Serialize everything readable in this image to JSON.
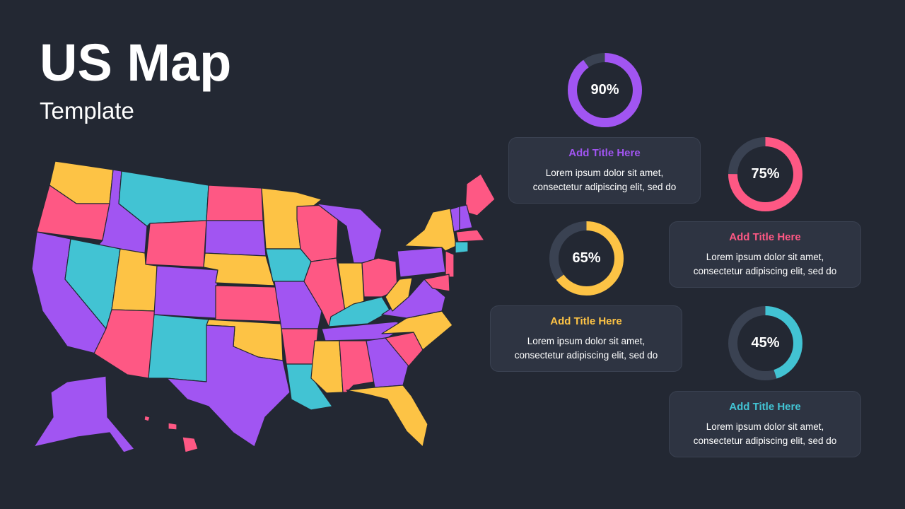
{
  "title": "US Map",
  "subtitle": "Template",
  "colors": {
    "background": "#232833",
    "card": "#2e3442",
    "track": "#3a4252",
    "purple": "#a155f2",
    "pink": "#fe5884",
    "yellow": "#fdc345",
    "teal": "#42c3d3"
  },
  "stats": [
    {
      "value": "90%",
      "fraction": 0.9,
      "color": "#a155f2"
    },
    {
      "value": "75%",
      "fraction": 0.75,
      "color": "#fe5884"
    },
    {
      "value": "65%",
      "fraction": 0.65,
      "color": "#fdc345"
    },
    {
      "value": "45%",
      "fraction": 0.45,
      "color": "#42c3d3"
    }
  ],
  "cards": [
    {
      "title": "Add Title Here",
      "line1": "Lorem ipsum dolor sit amet,",
      "line2": "consectetur adipiscing elit, sed do",
      "color": "#a155f2"
    },
    {
      "title": "Add Title Here",
      "line1": "Lorem ipsum dolor sit amet,",
      "line2": "consectetur adipiscing elit, sed do",
      "color": "#fe5884"
    },
    {
      "title": "Add Title Here",
      "line1": "Lorem ipsum dolor sit amet,",
      "line2": "consectetur adipiscing elit, sed do",
      "color": "#fdc345"
    },
    {
      "title": "Add Title Here",
      "line1": "Lorem ipsum dolor sit amet,",
      "line2": "consectetur adipiscing elit, sed do",
      "color": "#42c3d3"
    }
  ],
  "map": {
    "regions": [
      {
        "name": "WA",
        "color": "yellow"
      },
      {
        "name": "OR",
        "color": "pink"
      },
      {
        "name": "CA",
        "color": "purple"
      },
      {
        "name": "ID",
        "color": "purple"
      },
      {
        "name": "NV",
        "color": "teal"
      },
      {
        "name": "MT",
        "color": "teal"
      },
      {
        "name": "WY",
        "color": "pink"
      },
      {
        "name": "UT",
        "color": "yellow"
      },
      {
        "name": "AZ",
        "color": "pink"
      },
      {
        "name": "CO",
        "color": "purple"
      },
      {
        "name": "NM",
        "color": "teal"
      },
      {
        "name": "ND",
        "color": "pink"
      },
      {
        "name": "SD",
        "color": "purple"
      },
      {
        "name": "NE",
        "color": "yellow"
      },
      {
        "name": "KS",
        "color": "pink"
      },
      {
        "name": "OK",
        "color": "yellow"
      },
      {
        "name": "TX",
        "color": "purple"
      },
      {
        "name": "MN",
        "color": "yellow"
      },
      {
        "name": "IA",
        "color": "teal"
      },
      {
        "name": "MO",
        "color": "purple"
      },
      {
        "name": "AR",
        "color": "pink"
      },
      {
        "name": "LA",
        "color": "teal"
      },
      {
        "name": "WI",
        "color": "pink"
      },
      {
        "name": "IL",
        "color": "pink"
      },
      {
        "name": "MI",
        "color": "purple"
      },
      {
        "name": "IN",
        "color": "yellow"
      },
      {
        "name": "OH",
        "color": "pink"
      },
      {
        "name": "KY",
        "color": "teal"
      },
      {
        "name": "TN",
        "color": "purple"
      },
      {
        "name": "MS",
        "color": "yellow"
      },
      {
        "name": "AL",
        "color": "pink"
      },
      {
        "name": "GA",
        "color": "purple"
      },
      {
        "name": "FL",
        "color": "yellow"
      },
      {
        "name": "SC",
        "color": "pink"
      },
      {
        "name": "NC",
        "color": "yellow"
      },
      {
        "name": "VA",
        "color": "purple"
      },
      {
        "name": "WV",
        "color": "yellow"
      },
      {
        "name": "PA",
        "color": "purple"
      },
      {
        "name": "NY",
        "color": "yellow"
      },
      {
        "name": "ME",
        "color": "pink"
      },
      {
        "name": "VT",
        "color": "purple"
      },
      {
        "name": "NH",
        "color": "purple"
      },
      {
        "name": "MA",
        "color": "pink"
      },
      {
        "name": "CT",
        "color": "teal"
      },
      {
        "name": "NJ",
        "color": "pink"
      },
      {
        "name": "MD",
        "color": "pink"
      },
      {
        "name": "AK",
        "color": "purple"
      },
      {
        "name": "HI",
        "color": "pink"
      }
    ]
  }
}
